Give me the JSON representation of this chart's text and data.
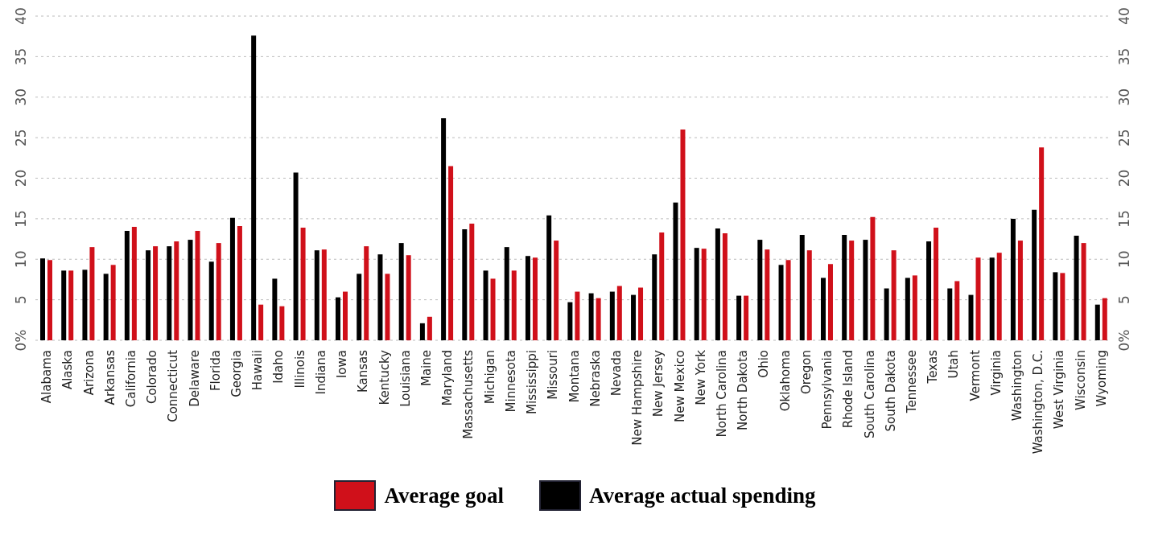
{
  "chart_data": {
    "type": "bar",
    "categories": [
      "Alabama",
      "Alaska",
      "Arizona",
      "Arkansas",
      "California",
      "Colorado",
      "Connecticut",
      "Delaware",
      "Florida",
      "Georgia",
      "Hawaii",
      "Idaho",
      "Illinois",
      "Indiana",
      "Iowa",
      "Kansas",
      "Kentucky",
      "Louisiana",
      "Maine",
      "Maryland",
      "Massachusetts",
      "Michigan",
      "Minnesota",
      "Mississippi",
      "Missouri",
      "Montana",
      "Nebraska",
      "Nevada",
      "New Hampshire",
      "New Jersey",
      "New Mexico",
      "New York",
      "North Carolina",
      "North Dakota",
      "Ohio",
      "Oklahoma",
      "Oregon",
      "Pennsylvania",
      "Rhode Island",
      "South Carolina",
      "South Dakota",
      "Tennessee",
      "Texas",
      "Utah",
      "Vermont",
      "Virginia",
      "Washington",
      "Washington, D.C.",
      "West Virginia",
      "Wisconsin",
      "Wyoming"
    ],
    "series": [
      {
        "name": "Average actual spending",
        "color": "#000000",
        "values": [
          10.1,
          8.6,
          8.7,
          8.2,
          13.5,
          11.1,
          11.6,
          12.4,
          9.7,
          15.1,
          37.6,
          7.6,
          20.7,
          11.1,
          5.3,
          8.2,
          10.6,
          12.0,
          2.1,
          27.4,
          13.7,
          8.6,
          11.5,
          10.4,
          15.4,
          4.7,
          5.8,
          6.0,
          5.6,
          10.6,
          17.0,
          11.4,
          13.8,
          5.5,
          12.4,
          9.3,
          13.0,
          7.7,
          13.0,
          12.4,
          6.4,
          7.7,
          12.2,
          6.4,
          5.6,
          10.2,
          15.0,
          16.1,
          8.4,
          12.9,
          4.4
        ]
      },
      {
        "name": "Average goal",
        "color": "#d0101a",
        "values": [
          9.9,
          8.6,
          11.5,
          9.3,
          14.0,
          11.6,
          12.2,
          13.5,
          12.0,
          14.1,
          4.4,
          4.2,
          13.9,
          11.2,
          6.0,
          11.6,
          8.2,
          10.5,
          2.9,
          21.5,
          14.4,
          7.6,
          8.6,
          10.2,
          12.3,
          6.0,
          5.2,
          6.7,
          6.5,
          13.3,
          26.0,
          11.3,
          13.2,
          5.5,
          11.2,
          9.9,
          11.1,
          9.4,
          12.3,
          15.2,
          11.1,
          8.0,
          13.9,
          7.3,
          10.2,
          10.8,
          12.3,
          23.8,
          8.3,
          12.0,
          5.2
        ]
      }
    ],
    "ylim": [
      0,
      40
    ],
    "yticks": [
      {
        "value": 0,
        "label": "0%"
      },
      5,
      10,
      15,
      20,
      25,
      30,
      35,
      40
    ],
    "y2lim": [
      0,
      40
    ],
    "y2ticks": [
      {
        "value": 0,
        "label": "0%"
      },
      5,
      10,
      15,
      20,
      25,
      30,
      35,
      40
    ],
    "grid": "y",
    "legend": "bottom"
  }
}
